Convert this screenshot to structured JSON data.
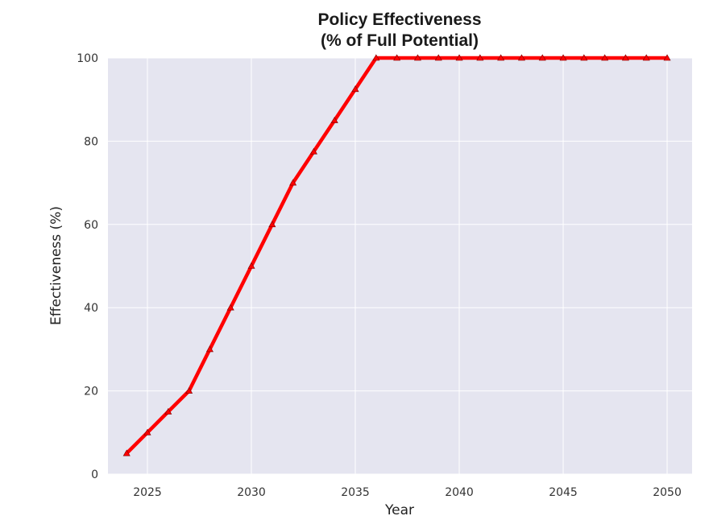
{
  "chart_data": {
    "type": "line",
    "title_lines": [
      "Policy Effectiveness",
      "(% of Full Potential)"
    ],
    "xlabel": "Year",
    "ylabel": "Effectiveness (%)",
    "x_ticks": [
      "2025",
      "2030",
      "2035",
      "2040",
      "2045",
      "2050"
    ],
    "y_ticks": [
      "0",
      "20",
      "40",
      "60",
      "80",
      "100"
    ],
    "xlim": [
      2023.1,
      2051.2
    ],
    "ylim": [
      0,
      100
    ],
    "grid": true,
    "series": [
      {
        "color": "#ff0000",
        "x": [
          2024,
          2025,
          2026,
          2027,
          2028,
          2029,
          2030,
          2031,
          2032,
          2033,
          2034,
          2035,
          2036,
          2037,
          2038,
          2039,
          2040,
          2041,
          2042,
          2043,
          2044,
          2045,
          2046,
          2047,
          2048,
          2049,
          2050
        ],
        "y": [
          5,
          10,
          15,
          20,
          30,
          40,
          50,
          60,
          70,
          77.5,
          85,
          92.5,
          100,
          100,
          100,
          100,
          100,
          100,
          100,
          100,
          100,
          100,
          100,
          100,
          100,
          100,
          100
        ]
      }
    ],
    "colors": {
      "plot_background": "#e5e5f0",
      "grid": "#ffffff",
      "line": "#ff0000"
    }
  }
}
